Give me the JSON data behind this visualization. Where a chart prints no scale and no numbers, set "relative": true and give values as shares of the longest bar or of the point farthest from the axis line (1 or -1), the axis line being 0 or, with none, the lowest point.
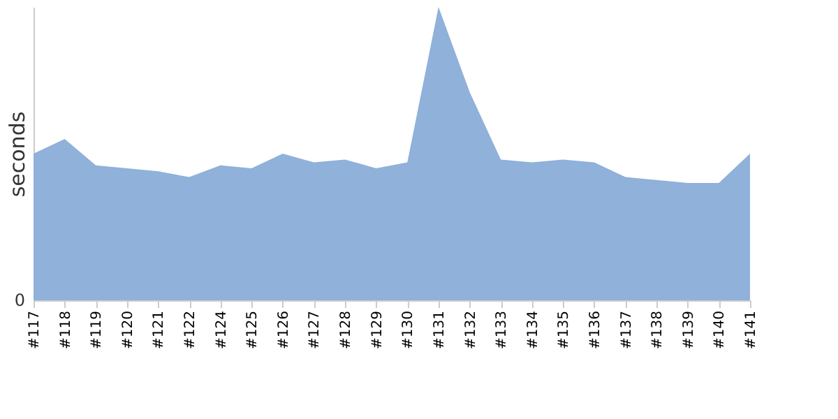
{
  "chart_data": {
    "type": "area",
    "ylabel": "seconds",
    "relative": true,
    "annotations": [
      "0"
    ],
    "categories": [
      "#117",
      "#118",
      "#119",
      "#120",
      "#121",
      "#122",
      "#124",
      "#125",
      "#126",
      "#127",
      "#128",
      "#129",
      "#130",
      "#131",
      "#132",
      "#133",
      "#134",
      "#135",
      "#136",
      "#137",
      "#138",
      "#139",
      "#140",
      "#141"
    ],
    "series": [
      {
        "color": "#8fb1da",
        "values": [
          0.5,
          0.55,
          0.46,
          0.45,
          0.44,
          0.42,
          0.46,
          0.45,
          0.5,
          0.47,
          0.48,
          0.45,
          0.47,
          1,
          0.71,
          0.48,
          0.47,
          0.48,
          0.47,
          0.42,
          0.41,
          0.4,
          0.4,
          0.5
        ]
      }
    ]
  }
}
